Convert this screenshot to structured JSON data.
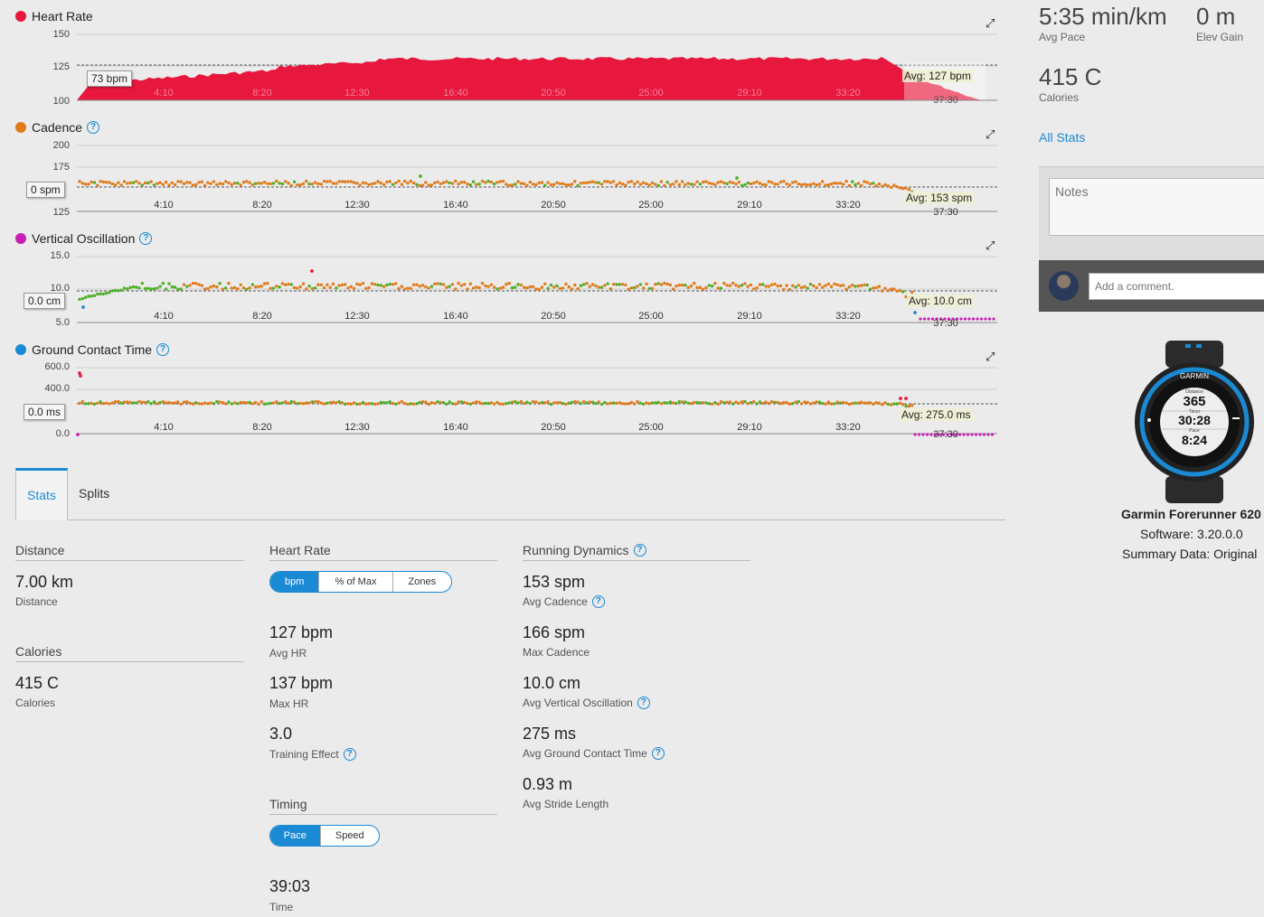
{
  "charts": [
    {
      "title": "Heart Rate",
      "dot_color": "#e8173d",
      "help": false,
      "y_ticks": [
        "150",
        "125",
        "100"
      ],
      "tooltip": "73 bpm",
      "avg": "Avg: 127 bpm",
      "x_ticks": [
        "4:10",
        "8:20",
        "12:30",
        "16:40",
        "20:50",
        "25:00",
        "29:10",
        "33:20",
        "37:30"
      ]
    },
    {
      "title": "Cadence",
      "dot_color": "#e07b1a",
      "help": true,
      "y_ticks": [
        "200",
        "175",
        "125"
      ],
      "tooltip": "0 spm",
      "avg": "Avg: 153 spm",
      "x_ticks": [
        "4:10",
        "8:20",
        "12:30",
        "16:40",
        "20:50",
        "25:00",
        "29:10",
        "33:20",
        "37:30"
      ]
    },
    {
      "title": "Vertical Oscillation",
      "dot_color": "#c81fb4",
      "help": true,
      "y_ticks": [
        "15.0",
        "10.0",
        "5.0"
      ],
      "tooltip": "0.0 cm",
      "avg": "Avg: 10.0 cm",
      "x_ticks": [
        "4:10",
        "8:20",
        "12:30",
        "16:40",
        "20:50",
        "25:00",
        "29:10",
        "33:20",
        "37:30"
      ]
    },
    {
      "title": "Ground Contact Time",
      "dot_color": "#1a8ad4",
      "help": true,
      "y_ticks": [
        "600.0",
        "400.0",
        "0.0"
      ],
      "tooltip": "0.0 ms",
      "avg": "Avg: 275.0 ms",
      "x_ticks": [
        "4:10",
        "8:20",
        "12:30",
        "16:40",
        "20:50",
        "25:00",
        "29:10",
        "33:20",
        "37:30"
      ]
    }
  ],
  "tabs": {
    "stats": "Stats",
    "splits": "Splits"
  },
  "distance": {
    "header": "Distance",
    "value": "7.00 km",
    "label": "Distance"
  },
  "calories": {
    "header": "Calories",
    "value": "415 C",
    "label": "Calories"
  },
  "heart_rate": {
    "header": "Heart Rate",
    "toggle": [
      "bpm",
      "% of Max",
      "Zones"
    ],
    "items": [
      {
        "value": "127 bpm",
        "label": "Avg HR",
        "help": false
      },
      {
        "value": "137 bpm",
        "label": "Max HR",
        "help": false
      },
      {
        "value": "3.0",
        "label": "Training Effect",
        "help": true
      }
    ]
  },
  "timing": {
    "header": "Timing",
    "toggle": [
      "Pace",
      "Speed"
    ],
    "value": "39:03",
    "label": "Time"
  },
  "running_dynamics": {
    "header": "Running Dynamics",
    "items": [
      {
        "value": "153 spm",
        "label": "Avg Cadence",
        "help": true
      },
      {
        "value": "166 spm",
        "label": "Max Cadence",
        "help": false
      },
      {
        "value": "10.0 cm",
        "label": "Avg Vertical Oscillation",
        "help": true
      },
      {
        "value": "275 ms",
        "label": "Avg Ground Contact Time",
        "help": true
      },
      {
        "value": "0.93 m",
        "label": "Avg Stride Length",
        "help": false
      }
    ]
  },
  "summary": {
    "pace_value": "5:35 min/km",
    "pace_label": "Avg Pace",
    "elev_value": "0 m",
    "elev_label": "Elev Gain",
    "cal_value": "415 C",
    "cal_label": "Calories",
    "all_stats": "All Stats"
  },
  "notes": {
    "placeholder": "Notes",
    "comment_placeholder": "Add a comment."
  },
  "device": {
    "name": "Garmin Forerunner 620",
    "software": "Software: 3.20.0.0",
    "summary": "Summary Data: Original",
    "watch_brand": "GARMIN",
    "watch_distance": "365",
    "watch_timer": "30:28",
    "watch_pace": "8:24",
    "watch_distance_label": "Distance",
    "watch_timer_label": "Timer",
    "watch_pace_label": "Pace"
  }
}
